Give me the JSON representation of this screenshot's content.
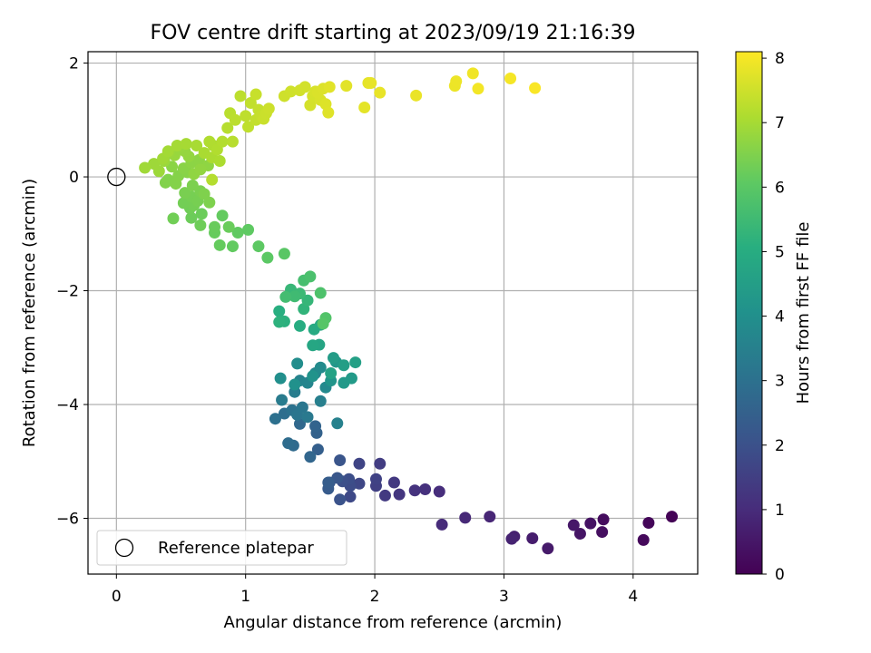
{
  "chart_data": {
    "type": "scatter",
    "title": "FOV centre drift starting at 2023/09/19 21:16:39",
    "xlabel": "Angular distance from reference (arcmin)",
    "ylabel": "Rotation from reference (arcmin)",
    "xlim": [
      -0.22,
      4.5
    ],
    "ylim": [
      -6.98,
      2.2
    ],
    "xticks": [
      0,
      1,
      2,
      3,
      4
    ],
    "yticks": [
      -6,
      -4,
      -2,
      0,
      2
    ],
    "grid": true,
    "colormap": "viridis",
    "colorbar": {
      "label": "Hours from first FF file",
      "min": 0,
      "max": 8.1,
      "ticks": [
        0,
        1,
        2,
        3,
        4,
        5,
        6,
        7,
        8
      ]
    },
    "legend": {
      "position": "lower-left",
      "entries": [
        {
          "label": "Reference platepar",
          "marker": "hollow-circle"
        }
      ]
    },
    "reference_point": {
      "x": 0,
      "y": 0
    },
    "points": [
      [
        4.3,
        -5.97,
        0.05
      ],
      [
        4.12,
        -6.08,
        0.12
      ],
      [
        4.08,
        -6.38,
        0.18
      ],
      [
        3.77,
        -6.02,
        0.25
      ],
      [
        3.76,
        -6.24,
        0.32
      ],
      [
        3.67,
        -6.09,
        0.38
      ],
      [
        3.59,
        -6.27,
        0.45
      ],
      [
        3.54,
        -6.12,
        0.52
      ],
      [
        3.34,
        -6.53,
        0.58
      ],
      [
        3.22,
        -6.35,
        0.65
      ],
      [
        3.08,
        -6.32,
        0.72
      ],
      [
        3.06,
        -6.36,
        0.78
      ],
      [
        2.89,
        -5.97,
        0.85
      ],
      [
        2.7,
        -5.99,
        0.92
      ],
      [
        2.52,
        -6.11,
        0.98
      ],
      [
        2.5,
        -5.53,
        1.05
      ],
      [
        2.39,
        -5.49,
        1.12
      ],
      [
        2.31,
        -5.51,
        1.18
      ],
      [
        2.19,
        -5.58,
        1.25
      ],
      [
        2.15,
        -5.37,
        1.32
      ],
      [
        2.08,
        -5.6,
        1.38
      ],
      [
        2.04,
        -5.04,
        1.45
      ],
      [
        2.01,
        -5.43,
        1.52
      ],
      [
        2.01,
        -5.31,
        1.58
      ],
      [
        1.88,
        -5.04,
        1.65
      ],
      [
        1.88,
        -5.39,
        1.72
      ],
      [
        1.81,
        -5.62,
        1.78
      ],
      [
        1.81,
        -5.43,
        1.85
      ],
      [
        1.8,
        -5.31,
        1.92
      ],
      [
        1.75,
        -5.35,
        1.98
      ],
      [
        1.73,
        -5.67,
        2.05
      ],
      [
        1.73,
        -4.98,
        2.12
      ],
      [
        1.71,
        -5.29,
        2.18
      ],
      [
        1.65,
        -5.37,
        2.25
      ],
      [
        1.64,
        -5.48,
        2.32
      ],
      [
        1.64,
        -5.37,
        2.38
      ],
      [
        1.56,
        -4.79,
        2.45
      ],
      [
        1.55,
        -4.5,
        2.52
      ],
      [
        1.54,
        -4.38,
        2.58
      ],
      [
        1.5,
        -4.92,
        2.65
      ],
      [
        1.42,
        -4.34,
        2.72
      ],
      [
        1.37,
        -4.72,
        2.78
      ],
      [
        1.33,
        -4.68,
        2.85
      ],
      [
        1.3,
        -4.16,
        2.92
      ],
      [
        1.23,
        -4.25,
        2.98
      ],
      [
        1.36,
        -4.1,
        3.05
      ],
      [
        1.4,
        -4.18,
        3.12
      ],
      [
        1.44,
        -4.05,
        3.18
      ],
      [
        1.48,
        -4.22,
        3.25
      ],
      [
        1.28,
        -3.92,
        3.32
      ],
      [
        1.38,
        -3.78,
        3.38
      ],
      [
        1.58,
        -3.94,
        3.45
      ],
      [
        1.71,
        -4.33,
        3.52
      ],
      [
        1.42,
        -3.58,
        3.58
      ],
      [
        1.48,
        -3.62,
        3.65
      ],
      [
        1.54,
        -3.45,
        3.72
      ],
      [
        1.62,
        -3.7,
        3.78
      ],
      [
        1.58,
        -3.35,
        3.85
      ],
      [
        1.4,
        -3.28,
        3.92
      ],
      [
        1.27,
        -3.54,
        3.98
      ],
      [
        1.38,
        -3.65,
        4.05
      ],
      [
        1.52,
        -3.5,
        4.12
      ],
      [
        1.66,
        -3.58,
        4.18
      ],
      [
        1.7,
        -3.25,
        4.25
      ],
      [
        1.76,
        -3.62,
        4.32
      ],
      [
        1.82,
        -3.54,
        4.38
      ],
      [
        1.68,
        -3.18,
        4.45
      ],
      [
        1.76,
        -3.31,
        4.52
      ],
      [
        1.85,
        -3.26,
        4.58
      ],
      [
        1.66,
        -3.45,
        4.65
      ],
      [
        1.57,
        -2.95,
        4.72
      ],
      [
        1.52,
        -2.96,
        4.78
      ],
      [
        1.58,
        -2.6,
        4.85
      ],
      [
        1.53,
        -2.68,
        4.92
      ],
      [
        1.42,
        -2.62,
        4.98
      ],
      [
        1.26,
        -2.36,
        5.05
      ],
      [
        1.3,
        -2.54,
        5.12
      ],
      [
        1.26,
        -2.55,
        5.18
      ],
      [
        1.45,
        -2.32,
        5.25
      ],
      [
        1.48,
        -2.17,
        5.32
      ],
      [
        1.35,
        -1.98,
        5.38
      ],
      [
        1.42,
        -2.05,
        5.45
      ],
      [
        1.38,
        -2.1,
        5.52
      ],
      [
        1.31,
        -2.11,
        5.58
      ],
      [
        1.45,
        -1.82,
        5.65
      ],
      [
        1.5,
        -1.75,
        5.72
      ],
      [
        1.58,
        -2.04,
        5.78
      ],
      [
        1.62,
        -2.48,
        5.85
      ],
      [
        1.6,
        -2.58,
        5.92
      ],
      [
        1.3,
        -1.35,
        5.98
      ],
      [
        1.17,
        -1.42,
        6.02
      ],
      [
        1.1,
        -1.22,
        6.05
      ],
      [
        1.02,
        -0.93,
        6.08
      ],
      [
        0.94,
        -0.98,
        6.1
      ],
      [
        0.9,
        -1.22,
        6.12
      ],
      [
        0.82,
        -0.68,
        6.14
      ],
      [
        0.8,
        -1.2,
        6.16
      ],
      [
        0.76,
        -0.98,
        6.18
      ],
      [
        0.76,
        -0.88,
        6.2
      ],
      [
        0.87,
        -0.88,
        6.22
      ],
      [
        0.66,
        -0.65,
        6.24
      ],
      [
        0.58,
        -0.72,
        6.26
      ],
      [
        0.65,
        -0.85,
        6.28
      ],
      [
        0.57,
        -0.55,
        6.3
      ],
      [
        0.44,
        -0.73,
        6.32
      ],
      [
        0.52,
        -0.46,
        6.34
      ],
      [
        0.6,
        -0.5,
        6.36
      ],
      [
        0.58,
        -0.35,
        6.38
      ],
      [
        0.63,
        -0.42,
        6.4
      ],
      [
        0.53,
        -0.28,
        6.42
      ],
      [
        0.65,
        -0.25,
        6.44
      ],
      [
        0.59,
        -0.15,
        6.46
      ],
      [
        0.72,
        -0.45,
        6.48
      ],
      [
        0.68,
        -0.3,
        6.5
      ],
      [
        0.38,
        -0.1,
        6.52
      ],
      [
        0.4,
        -0.05,
        6.54
      ],
      [
        0.46,
        -0.12,
        6.56
      ],
      [
        0.48,
        0.02,
        6.58
      ],
      [
        0.55,
        0.08,
        6.6
      ],
      [
        0.52,
        0.15,
        6.62
      ],
      [
        0.43,
        0.18,
        6.64
      ],
      [
        0.58,
        0.25,
        6.66
      ],
      [
        0.64,
        0.3,
        6.68
      ],
      [
        0.71,
        0.2,
        6.7
      ],
      [
        0.6,
        0.05,
        6.72
      ],
      [
        0.65,
        0.13,
        6.74
      ],
      [
        0.56,
        0.36,
        6.76
      ],
      [
        0.53,
        0.45,
        6.78
      ],
      [
        0.49,
        0.52,
        6.8
      ],
      [
        0.45,
        0.38,
        6.82
      ],
      [
        0.41,
        0.42,
        6.84
      ],
      [
        0.37,
        0.28,
        6.86
      ],
      [
        0.33,
        0.1,
        6.88
      ],
      [
        0.29,
        0.23,
        6.9
      ],
      [
        0.22,
        0.16,
        6.92
      ],
      [
        0.36,
        0.32,
        6.94
      ],
      [
        0.4,
        0.45,
        6.96
      ],
      [
        0.47,
        0.55,
        6.98
      ],
      [
        0.54,
        0.58,
        7.0
      ],
      [
        0.62,
        0.55,
        7.02
      ],
      [
        0.68,
        0.42,
        7.04
      ],
      [
        0.74,
        0.34,
        7.06
      ],
      [
        0.8,
        0.28,
        7.08
      ],
      [
        0.75,
        0.55,
        7.1
      ],
      [
        0.72,
        0.62,
        7.12
      ],
      [
        0.78,
        0.48,
        7.14
      ],
      [
        0.82,
        0.62,
        7.16
      ],
      [
        0.74,
        -0.05,
        7.18
      ],
      [
        0.86,
        0.86,
        7.2
      ],
      [
        0.9,
        0.62,
        7.22
      ],
      [
        0.88,
        1.12,
        7.24
      ],
      [
        0.92,
        1.0,
        7.26
      ],
      [
        0.96,
        1.42,
        7.28
      ],
      [
        1.0,
        1.07,
        7.3
      ],
      [
        1.02,
        0.88,
        7.32
      ],
      [
        1.04,
        1.3,
        7.34
      ],
      [
        1.08,
        1.0,
        7.36
      ],
      [
        1.1,
        1.18,
        7.38
      ],
      [
        1.12,
        1.08,
        7.4
      ],
      [
        1.08,
        1.45,
        7.42
      ],
      [
        1.14,
        1.02,
        7.44
      ],
      [
        1.16,
        1.12,
        7.46
      ],
      [
        1.18,
        1.2,
        7.48
      ],
      [
        1.3,
        1.42,
        7.5
      ],
      [
        1.35,
        1.5,
        7.52
      ],
      [
        1.42,
        1.52,
        7.54
      ],
      [
        1.46,
        1.58,
        7.56
      ],
      [
        1.5,
        1.26,
        7.58
      ],
      [
        1.52,
        1.42,
        7.6
      ],
      [
        1.54,
        1.5,
        7.62
      ],
      [
        1.58,
        1.35,
        7.64
      ],
      [
        1.56,
        1.48,
        7.66
      ],
      [
        1.6,
        1.55,
        7.68
      ],
      [
        1.62,
        1.28,
        7.7
      ],
      [
        1.64,
        1.13,
        7.72
      ],
      [
        1.65,
        1.58,
        7.74
      ],
      [
        1.78,
        1.6,
        7.76
      ],
      [
        1.92,
        1.22,
        7.78
      ],
      [
        1.95,
        1.65,
        7.8
      ],
      [
        1.97,
        1.65,
        7.82
      ],
      [
        2.04,
        1.48,
        7.84
      ],
      [
        2.32,
        1.43,
        7.86
      ],
      [
        2.62,
        1.6,
        7.88
      ],
      [
        2.63,
        1.68,
        7.9
      ],
      [
        2.76,
        1.82,
        7.94
      ],
      [
        2.8,
        1.55,
        7.97
      ],
      [
        3.05,
        1.73,
        8.0
      ],
      [
        3.24,
        1.56,
        8.05
      ]
    ]
  }
}
